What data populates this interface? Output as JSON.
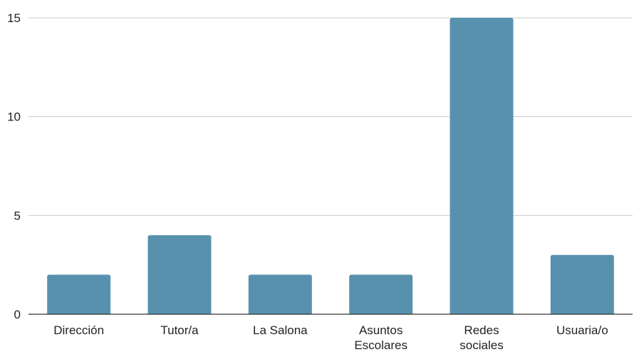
{
  "chart_data": {
    "type": "bar",
    "categories": [
      "Dirección",
      "Tutor/a",
      "La Salona",
      "Asuntos Escolares",
      "Redes sociales",
      "Usuaria/o"
    ],
    "category_lines": [
      [
        "Dirección"
      ],
      [
        "Tutor/a"
      ],
      [
        "La Salona"
      ],
      [
        "Asuntos",
        "Escolares"
      ],
      [
        "Redes",
        "sociales"
      ],
      [
        "Usuaria/o"
      ]
    ],
    "values": [
      2,
      4,
      2,
      2,
      15,
      3
    ],
    "ylim": [
      0,
      15
    ],
    "yticks": [
      0,
      5,
      10,
      15
    ],
    "title": "",
    "xlabel": "",
    "ylabel": "",
    "grid": true,
    "bar_color": "#5891ae",
    "grid_color": "#cccccc",
    "axis_color": "#333333"
  }
}
